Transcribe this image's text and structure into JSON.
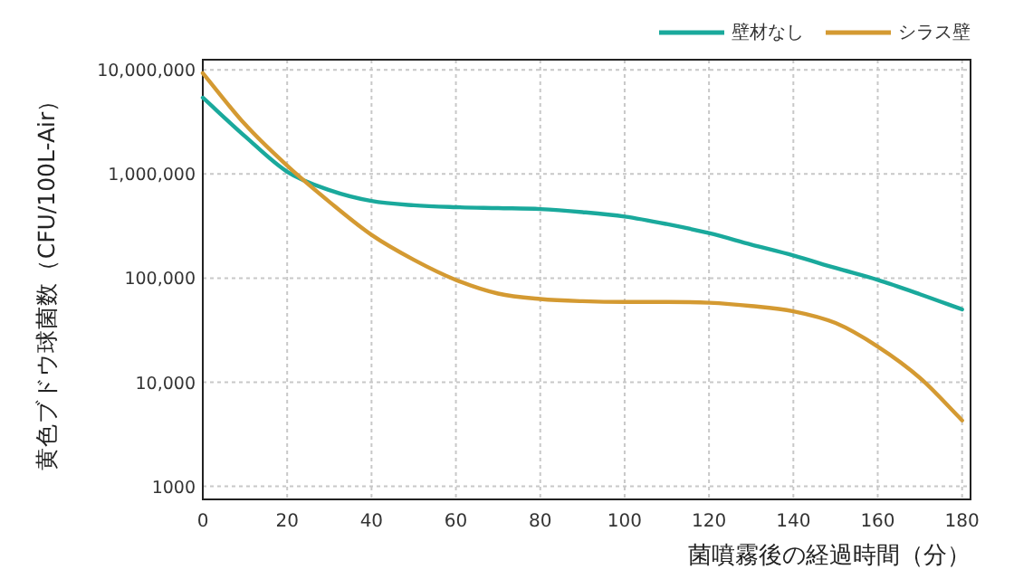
{
  "chart_data": {
    "type": "line",
    "xlabel": "菌噴霧後の経過時間（分）",
    "ylabel": "黄色ブドウ球菌数（CFU/100L-Air）",
    "x": [
      0,
      10,
      20,
      30,
      40,
      50,
      60,
      70,
      80,
      90,
      100,
      110,
      120,
      130,
      140,
      150,
      160,
      170,
      180
    ],
    "series": [
      {
        "name": "壁材なし",
        "color": "#1aa99c",
        "values": [
          5400000,
          2300000,
          1050000,
          700000,
          550000,
          500000,
          480000,
          470000,
          460000,
          430000,
          390000,
          330000,
          270000,
          210000,
          165000,
          125000,
          96000,
          70000,
          50000
        ]
      },
      {
        "name": "シラス壁",
        "color": "#d49a32",
        "values": [
          9300000,
          3000000,
          1200000,
          540000,
          260000,
          150000,
          96000,
          71000,
          63000,
          60000,
          59000,
          59000,
          58000,
          54000,
          48000,
          37000,
          22000,
          11000,
          4300
        ]
      }
    ],
    "log": "y",
    "xlim": [
      0,
      182
    ],
    "xticks": [
      0,
      20,
      40,
      60,
      80,
      100,
      120,
      140,
      160,
      180
    ],
    "ylim": [
      750,
      12500000
    ],
    "yticks": [
      1000,
      {
        "value": 10000,
        "label": "10,000"
      },
      {
        "value": 100000,
        "label": "100,000"
      },
      {
        "value": 1000000,
        "label": "1,000,000"
      },
      {
        "value": 10000000,
        "label": "10,000,000"
      }
    ],
    "grid": true,
    "legend": "top right",
    "line_style": "solid",
    "marker": "none"
  }
}
